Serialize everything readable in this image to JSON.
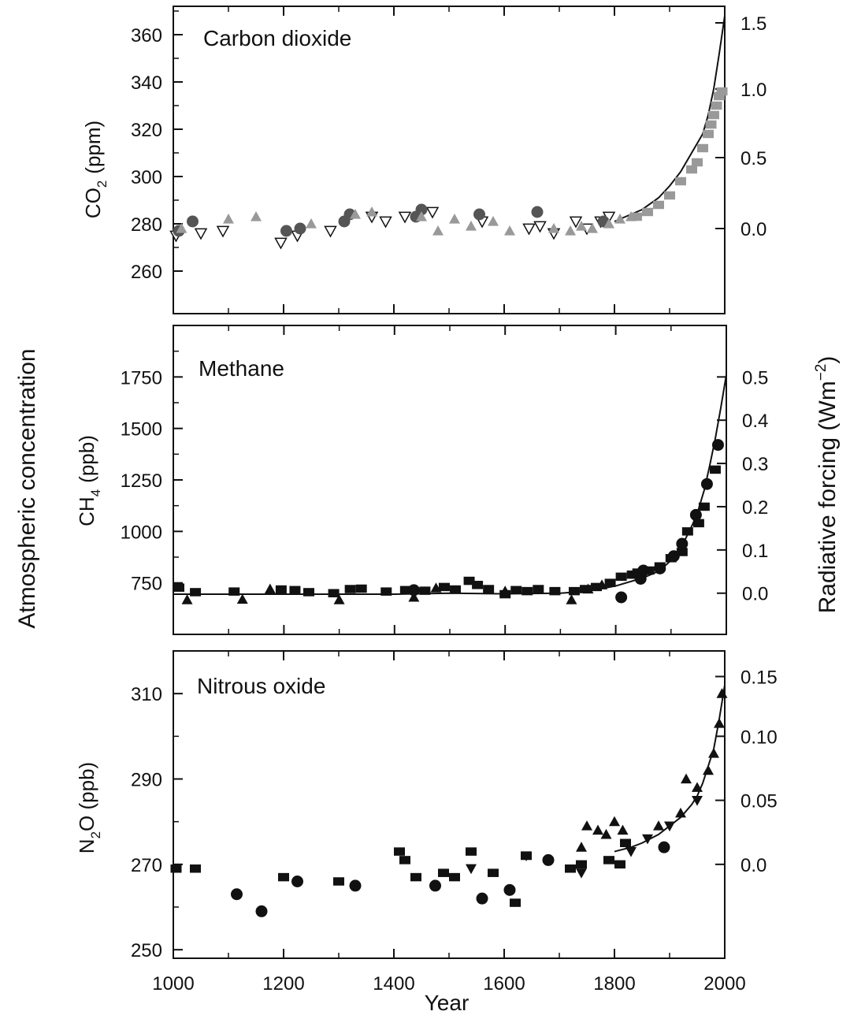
{
  "figure": {
    "left_axis_label": "Atmospheric concentration",
    "right_axis_label": "Radiative forcing  (Wm",
    "right_axis_label_sup": "−2",
    "right_axis_label_close": ")",
    "xlabel": "Year"
  },
  "chart_data": [
    {
      "type": "scatter",
      "title": "Carbon dioxide",
      "ylabel_main": "CO",
      "ylabel_sub": "2",
      "ylabel_unit": "(ppm)",
      "xlim": [
        1000,
        2000
      ],
      "ylim": [
        242,
        372
      ],
      "yticks": [
        260,
        280,
        300,
        320,
        340,
        360
      ],
      "right_axis": {
        "ticks": [
          0.0,
          0.5,
          1.0,
          1.5
        ],
        "labels": [
          "0.0",
          "0.5",
          "1.0",
          "1.5"
        ],
        "values_ppm": [
          278,
          308,
          337,
          365
        ]
      },
      "series": [
        {
          "marker": "triangle-down-open",
          "color": "#ffffff",
          "x": [
            1005,
            1050,
            1090,
            1195,
            1225,
            1285,
            1360,
            1385,
            1420,
            1470,
            1560,
            1645,
            1665,
            1690,
            1730,
            1750,
            1775,
            1790
          ],
          "y": [
            275,
            276,
            277,
            272,
            275,
            277,
            283,
            281,
            283,
            285,
            281,
            278,
            279,
            276,
            281,
            278,
            281,
            283
          ]
        },
        {
          "marker": "circle",
          "color": "#555555",
          "x": [
            1010,
            1035,
            1205,
            1230,
            1310,
            1320,
            1440,
            1450,
            1555,
            1660,
            1780
          ],
          "y": [
            277,
            281,
            277,
            278,
            281,
            284,
            283,
            286,
            284,
            285,
            281
          ]
        },
        {
          "marker": "triangle-up",
          "color": "#999999",
          "x": [
            1015,
            1100,
            1150,
            1250,
            1330,
            1360,
            1450,
            1480,
            1510,
            1540,
            1580,
            1610,
            1690,
            1720,
            1740,
            1760,
            1790,
            1810,
            1830
          ],
          "y": [
            278,
            282,
            283,
            280,
            284,
            285,
            283,
            277,
            282,
            279,
            281,
            277,
            278,
            277,
            279,
            278,
            280,
            282,
            283
          ]
        },
        {
          "marker": "square",
          "color": "#999999",
          "x": [
            1840,
            1860,
            1880,
            1900,
            1920,
            1940,
            1950,
            1960,
            1970,
            1975,
            1980,
            1985,
            1990,
            1995
          ],
          "y": [
            283,
            285,
            288,
            292,
            298,
            303,
            306,
            312,
            318,
            322,
            326,
            330,
            334,
            336
          ]
        }
      ],
      "fit_line": {
        "x": [
          1800,
          1850,
          1880,
          1900,
          1920,
          1940,
          1960,
          1970,
          1980,
          1990,
          2000
        ],
        "y": [
          281,
          286,
          291,
          296,
          302,
          310,
          318,
          326,
          337,
          352,
          368
        ]
      }
    },
    {
      "type": "scatter",
      "title": "Methane",
      "ylabel_main": "CH",
      "ylabel_sub": "4",
      "ylabel_unit": "(ppb)",
      "xlim": [
        1000,
        2000
      ],
      "ylim": [
        500,
        2000
      ],
      "yticks": [
        750,
        1000,
        1250,
        1500,
        1750
      ],
      "right_axis": {
        "ticks": [
          0.0,
          0.1,
          0.2,
          0.3,
          0.4,
          0.5
        ],
        "labels": [
          "0.0",
          "0.1",
          "0.2",
          "0.3",
          "0.4",
          "0.5"
        ],
        "values_ppb": [
          700,
          910,
          1120,
          1330,
          1540,
          1750
        ]
      },
      "series": [
        {
          "marker": "square",
          "color": "#111111",
          "x": [
            1010,
            1040,
            1110,
            1195,
            1220,
            1245,
            1290,
            1320,
            1340,
            1385,
            1420,
            1455,
            1490,
            1510,
            1535,
            1550,
            1570,
            1600,
            1620,
            1640,
            1660,
            1690,
            1725,
            1745,
            1765,
            1790,
            1810,
            1830,
            1840,
            1860,
            1880,
            1900,
            1920,
            1930,
            1950,
            1960,
            1980
          ],
          "y": [
            727,
            705,
            708,
            718,
            715,
            705,
            700,
            720,
            722,
            708,
            715,
            712,
            730,
            718,
            760,
            740,
            720,
            695,
            715,
            710,
            720,
            710,
            710,
            720,
            730,
            750,
            780,
            790,
            800,
            810,
            830,
            870,
            900,
            1000,
            1040,
            1120,
            1300
          ]
        },
        {
          "marker": "triangle-up",
          "color": "#111111",
          "x": [
            1025,
            1125,
            1175,
            1300,
            1435,
            1475,
            1600,
            1720,
            1750,
            1775
          ],
          "y": [
            668,
            670,
            720,
            668,
            680,
            725,
            710,
            668,
            720,
            740
          ]
        },
        {
          "marker": "circle",
          "color": "#111111",
          "x": [
            1435,
            1810,
            1845,
            1850,
            1880,
            1905,
            1920,
            1945,
            1965,
            1985
          ],
          "y": [
            715,
            680,
            770,
            810,
            820,
            880,
            940,
            1080,
            1230,
            1420
          ]
        }
      ],
      "fit_line": {
        "x": [
          1000,
          1100,
          1200,
          1300,
          1400,
          1500,
          1600,
          1700,
          1750,
          1800,
          1850,
          1880,
          1900,
          1920,
          1940,
          1950,
          1960,
          1970,
          1980,
          1990,
          2000
        ],
        "y": [
          695,
          695,
          695,
          695,
          695,
          700,
          697,
          700,
          710,
          735,
          775,
          810,
          860,
          930,
          1040,
          1110,
          1200,
          1320,
          1450,
          1600,
          1760
        ]
      }
    },
    {
      "type": "scatter",
      "title": "Nitrous oxide",
      "ylabel_main": "N",
      "ylabel_sub": "2",
      "ylabel_unit": "O  (ppb)",
      "xlim": [
        1000,
        2000
      ],
      "ylim": [
        248,
        320
      ],
      "yticks": [
        250,
        270,
        290,
        310
      ],
      "right_axis": {
        "ticks": [
          0.0,
          0.05,
          0.1,
          0.15
        ],
        "labels": [
          "0.0",
          "0.05",
          "0.10",
          "0.15"
        ],
        "values_ppb": [
          270,
          285,
          300,
          314
        ]
      },
      "series": [
        {
          "marker": "square",
          "color": "#111111",
          "x": [
            1005,
            1040,
            1200,
            1300,
            1410,
            1420,
            1440,
            1490,
            1510,
            1540,
            1580,
            1620,
            1640,
            1720,
            1740,
            1790,
            1810,
            1820
          ],
          "y": [
            269,
            269,
            267,
            266,
            273,
            271,
            267,
            268,
            267,
            273,
            268,
            261,
            272,
            269,
            270,
            271,
            270,
            275
          ]
        },
        {
          "marker": "circle",
          "color": "#111111",
          "x": [
            1115,
            1160,
            1225,
            1330,
            1475,
            1560,
            1610,
            1680,
            1890
          ],
          "y": [
            263,
            259,
            266,
            265,
            265,
            262,
            264,
            271,
            274
          ]
        },
        {
          "marker": "triangle-down",
          "color": "#111111",
          "x": [
            1540,
            1640,
            1740,
            1830,
            1860,
            1900,
            1950
          ],
          "y": [
            269,
            272,
            268,
            273,
            276,
            279,
            285
          ]
        },
        {
          "marker": "triangle-up",
          "color": "#111111",
          "x": [
            1740,
            1750,
            1770,
            1785,
            1800,
            1815,
            1880,
            1920,
            1930,
            1950,
            1970,
            1980,
            1990,
            1995
          ],
          "y": [
            274,
            279,
            278,
            277,
            280,
            278,
            279,
            282,
            290,
            288,
            292,
            296,
            303,
            310
          ]
        }
      ],
      "fit_line": {
        "x": [
          1800,
          1830,
          1850,
          1880,
          1900,
          1920,
          1940,
          1950,
          1960,
          1970,
          1980,
          1990,
          2000
        ],
        "y": [
          273,
          274,
          275,
          277,
          279,
          281,
          284,
          286,
          289,
          293,
          297,
          304,
          312
        ]
      }
    }
  ],
  "shared_x": {
    "ticks": [
      1000,
      1200,
      1400,
      1600,
      1800,
      2000
    ],
    "labels": [
      "1000",
      "1200",
      "1400",
      "1600",
      "1800",
      "2000"
    ]
  }
}
